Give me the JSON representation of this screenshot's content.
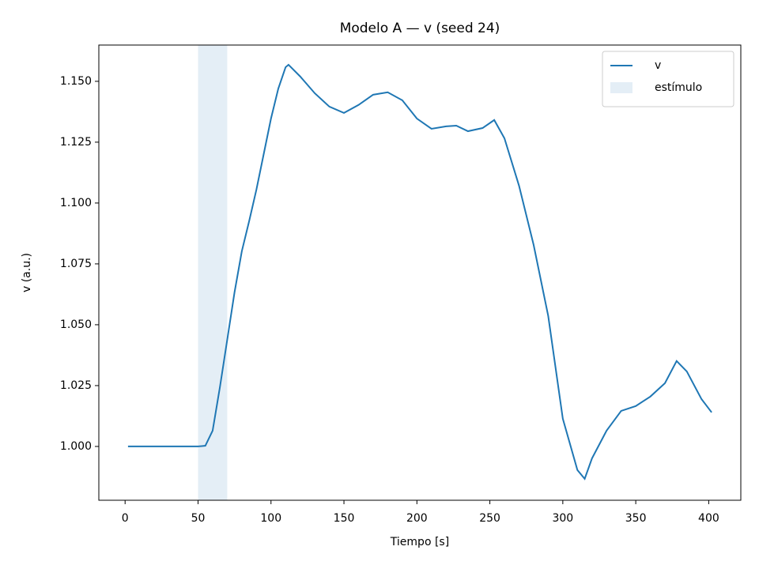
{
  "chart_data": {
    "type": "line",
    "title": "Modelo A — v (seed 24)",
    "x_label": "Tiempo [s]",
    "y_label": "v (a.u.)",
    "x": [
      2,
      10,
      20,
      30,
      40,
      50,
      55,
      60,
      65,
      70,
      75,
      80,
      85,
      90,
      95,
      100,
      105,
      110,
      112,
      120,
      130,
      140,
      150,
      160,
      170,
      180,
      190,
      200,
      210,
      220,
      227,
      235,
      245,
      253,
      260,
      270,
      280,
      290,
      300,
      310,
      315,
      320,
      330,
      340,
      350,
      360,
      370,
      378,
      385,
      395,
      402
    ],
    "series": [
      {
        "name": "v",
        "color": "#1f77b4",
        "values": [
          1.0,
          1.0,
          1.0,
          1.0,
          1.0,
          1.0,
          1.0003,
          1.0065,
          1.0244,
          1.0438,
          1.0633,
          1.0802,
          1.0925,
          1.1055,
          1.1201,
          1.1347,
          1.147,
          1.1558,
          1.1568,
          1.152,
          1.1451,
          1.1396,
          1.137,
          1.1403,
          1.1445,
          1.1455,
          1.1422,
          1.1347,
          1.1305,
          1.1315,
          1.1318,
          1.1295,
          1.1308,
          1.1341,
          1.1266,
          1.1071,
          1.0828,
          1.0536,
          1.0114,
          0.9903,
          0.9867,
          0.9951,
          1.0065,
          1.0146,
          1.0166,
          1.0205,
          1.026,
          1.0351,
          1.0308,
          1.0195,
          1.014
        ]
      }
    ],
    "span": {
      "x0": 50,
      "x1": 70,
      "label": "estímulo",
      "color": "#1f77b4",
      "opacity": 0.12
    },
    "xlim": [
      -18,
      422
    ],
    "xticks": [
      0,
      50,
      100,
      150,
      200,
      250,
      300,
      350,
      400
    ],
    "ylim": [
      0.9779,
      1.1649
    ],
    "yticks": [
      {
        "value": 1.0,
        "label": "1.000"
      },
      {
        "value": 1.025,
        "label": "1.025"
      },
      {
        "value": 1.05,
        "label": "1.050"
      },
      {
        "value": 1.075,
        "label": "1.075"
      },
      {
        "value": 1.1,
        "label": "1.100"
      },
      {
        "value": 1.125,
        "label": "1.125"
      },
      {
        "value": 1.15,
        "label": "1.150"
      }
    ],
    "legend": "upper right",
    "grid": false
  }
}
